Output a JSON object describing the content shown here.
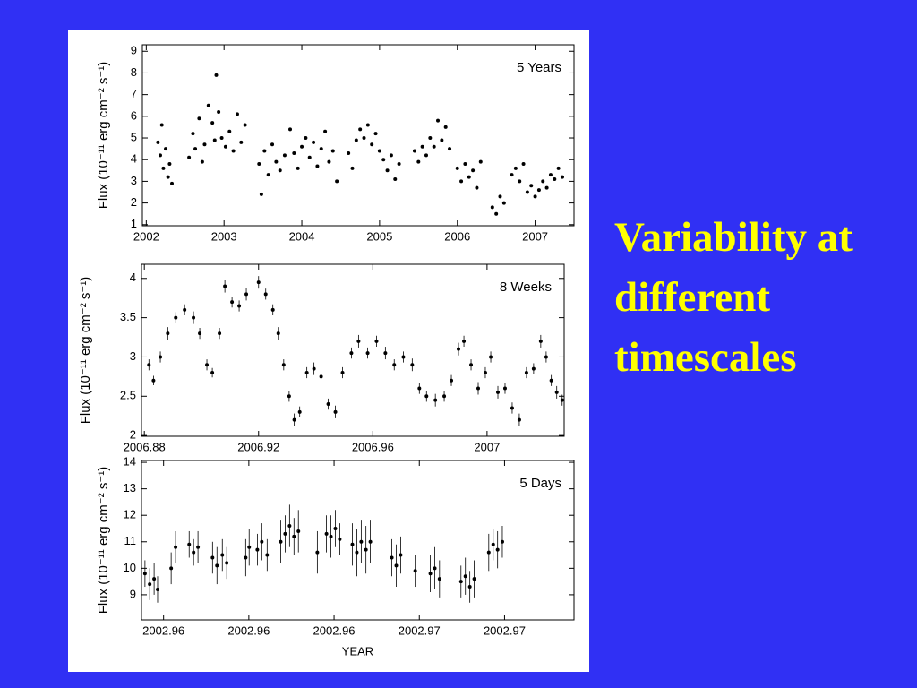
{
  "slide": {
    "title": "Variability at different timescales"
  },
  "chart_data": [
    {
      "type": "scatter",
      "annotation": "5 Years",
      "ylabel": "Flux (10⁻¹¹ erg cm⁻² s⁻¹)",
      "color": "#000000",
      "xlim": [
        2001.95,
        2007.5
      ],
      "ylim": [
        0.95,
        9.3
      ],
      "xticks": [
        2002,
        2003,
        2004,
        2005,
        2006,
        2007
      ],
      "yticks": [
        1,
        2,
        3,
        4,
        5,
        6,
        7,
        8,
        9
      ],
      "x": [
        2002.15,
        2002.18,
        2002.2,
        2002.22,
        2002.25,
        2002.28,
        2002.3,
        2002.33,
        2002.55,
        2002.6,
        2002.63,
        2002.68,
        2002.72,
        2002.75,
        2002.8,
        2002.85,
        2002.88,
        2002.9,
        2002.93,
        2002.97,
        2003.02,
        2003.07,
        2003.12,
        2003.17,
        2003.22,
        2003.27,
        2003.45,
        2003.48,
        2003.52,
        2003.57,
        2003.62,
        2003.67,
        2003.72,
        2003.78,
        2003.85,
        2003.9,
        2003.95,
        2004.0,
        2004.05,
        2004.1,
        2004.15,
        2004.2,
        2004.25,
        2004.3,
        2004.35,
        2004.4,
        2004.45,
        2004.6,
        2004.65,
        2004.7,
        2004.75,
        2004.8,
        2004.85,
        2004.9,
        2004.95,
        2005.0,
        2005.05,
        2005.1,
        2005.15,
        2005.2,
        2005.25,
        2005.45,
        2005.5,
        2005.55,
        2005.6,
        2005.65,
        2005.7,
        2005.75,
        2005.8,
        2005.85,
        2005.9,
        2006.0,
        2006.05,
        2006.1,
        2006.15,
        2006.2,
        2006.25,
        2006.3,
        2006.45,
        2006.5,
        2006.55,
        2006.6,
        2006.7,
        2006.75,
        2006.8,
        2006.85,
        2006.9,
        2006.95,
        2007.0,
        2007.05,
        2007.1,
        2007.15,
        2007.2,
        2007.25,
        2007.3,
        2007.35
      ],
      "values": [
        4.8,
        4.2,
        5.6,
        3.6,
        4.5,
        3.2,
        3.8,
        2.9,
        4.1,
        5.2,
        4.5,
        5.9,
        3.9,
        4.7,
        6.5,
        5.7,
        4.9,
        7.9,
        6.2,
        5.0,
        4.6,
        5.3,
        4.4,
        6.1,
        4.8,
        5.6,
        3.8,
        2.4,
        4.4,
        3.3,
        4.7,
        3.9,
        3.5,
        4.2,
        5.4,
        4.3,
        3.6,
        4.6,
        5.0,
        4.1,
        4.8,
        3.7,
        4.5,
        5.3,
        3.9,
        4.4,
        3.0,
        4.3,
        3.6,
        4.9,
        5.4,
        5.0,
        5.6,
        4.7,
        5.2,
        4.4,
        4.0,
        3.5,
        4.2,
        3.1,
        3.8,
        4.4,
        3.9,
        4.6,
        4.2,
        5.0,
        4.6,
        5.8,
        4.9,
        5.5,
        4.5,
        3.6,
        3.0,
        3.8,
        3.2,
        3.5,
        2.7,
        3.9,
        1.8,
        1.5,
        2.3,
        2.0,
        3.3,
        3.6,
        3.0,
        3.8,
        2.5,
        2.8,
        2.3,
        2.6,
        3.0,
        2.7,
        3.3,
        3.1,
        3.6,
        3.2
      ]
    },
    {
      "type": "scatter",
      "annotation": "8 Weeks",
      "ylabel": "Flux (10⁻¹¹ erg cm⁻² s⁻¹)",
      "color": "#000000",
      "xlim": [
        2006.879,
        2007.027
      ],
      "ylim": [
        1.99,
        4.18
      ],
      "xticks": [
        2006.88,
        2006.92,
        2006.96,
        2007
      ],
      "yticks": [
        2,
        2.5,
        3,
        3.5,
        4
      ],
      "x": [
        2006.8816,
        2006.8832,
        2006.8856,
        2006.8882,
        2006.891,
        2006.8941,
        2006.8972,
        2006.8994,
        2006.9019,
        2006.9038,
        2006.9063,
        2006.9082,
        2006.9107,
        2006.9132,
        2006.9157,
        2006.92,
        2006.9225,
        2006.925,
        2006.9269,
        2006.9288,
        2006.9307,
        2006.9325,
        2006.9344,
        2006.9369,
        2006.9394,
        2006.9419,
        2006.9444,
        2006.9469,
        2006.9494,
        2006.9525,
        2006.955,
        2006.9582,
        2006.9613,
        2006.9644,
        2006.9675,
        2006.9707,
        2006.9738,
        2006.9763,
        2006.9788,
        2006.9819,
        2006.985,
        2006.9875,
        2006.99,
        2006.9919,
        2006.9944,
        2006.9969,
        2006.9994,
        2007.0013,
        2007.0038,
        2007.0063,
        2007.0088,
        2007.0113,
        2007.0138,
        2007.0163,
        2007.0188,
        2007.0207,
        2007.0225,
        2007.0244,
        2007.0263
      ],
      "values": [
        2.9,
        2.7,
        3.0,
        3.3,
        3.5,
        3.6,
        3.5,
        3.3,
        2.9,
        2.8,
        3.3,
        3.9,
        3.7,
        3.65,
        3.8,
        3.95,
        3.8,
        3.6,
        3.3,
        2.9,
        2.5,
        2.2,
        2.3,
        2.8,
        2.85,
        2.75,
        2.4,
        2.3,
        2.8,
        3.05,
        3.2,
        3.05,
        3.2,
        3.05,
        2.9,
        3.0,
        2.9,
        2.6,
        2.5,
        2.45,
        2.5,
        2.7,
        3.1,
        3.2,
        2.9,
        2.6,
        2.8,
        3.0,
        2.55,
        2.6,
        2.35,
        2.2,
        2.8,
        2.85,
        3.2,
        3.0,
        2.7,
        2.55,
        2.45
      ],
      "errors": [
        0.07,
        0.06,
        0.07,
        0.08,
        0.07,
        0.07,
        0.08,
        0.07,
        0.07,
        0.06,
        0.07,
        0.08,
        0.07,
        0.07,
        0.08,
        0.08,
        0.07,
        0.07,
        0.08,
        0.07,
        0.07,
        0.08,
        0.07,
        0.07,
        0.08,
        0.07,
        0.07,
        0.08,
        0.07,
        0.07,
        0.08,
        0.07,
        0.07,
        0.08,
        0.07,
        0.07,
        0.08,
        0.07,
        0.07,
        0.08,
        0.07,
        0.07,
        0.08,
        0.07,
        0.07,
        0.08,
        0.07,
        0.07,
        0.08,
        0.07,
        0.07,
        0.08,
        0.07,
        0.07,
        0.08,
        0.07,
        0.07,
        0.08,
        0.07
      ]
    },
    {
      "type": "scatter",
      "annotation": "5 Days",
      "ylabel": "Flux (10⁻¹¹ erg cm⁻² s⁻¹)",
      "xlabel": "YEAR",
      "color": "#000000",
      "xlim": [
        2002.9563,
        2002.97
      ],
      "ylim": [
        8.05,
        14.07
      ],
      "xticks": [
        {
          "value": 2002.957,
          "label": "2002.96"
        },
        {
          "value": 2002.9597,
          "label": "2002.96"
        },
        {
          "value": 2002.9624,
          "label": "2002.96"
        },
        {
          "value": 2002.9651,
          "label": "2002.97"
        },
        {
          "value": 2002.9678,
          "label": "2002.97"
        }
      ],
      "yticks": [
        9,
        10,
        11,
        12,
        13,
        14
      ],
      "x": [
        2002.95641,
        2002.95656,
        2002.9567,
        2002.95681,
        2002.95724,
        2002.95738,
        2002.95781,
        2002.95795,
        2002.95809,
        2002.95855,
        2002.95869,
        2002.95886,
        2002.959,
        2002.9596,
        2002.95971,
        2002.95997,
        2002.96011,
        2002.96028,
        2002.96071,
        2002.96085,
        2002.96099,
        2002.96113,
        2002.96127,
        2002.96187,
        2002.96216,
        2002.9623,
        2002.96244,
        2002.96258,
        2002.96298,
        2002.96312,
        2002.96326,
        2002.96341,
        2002.96355,
        2002.96423,
        2002.96437,
        2002.96451,
        2002.96497,
        2002.96545,
        2002.96559,
        2002.96574,
        2002.96642,
        2002.96656,
        2002.9667,
        2002.96684,
        2002.9673,
        2002.96744,
        2002.96758,
        2002.96773
      ],
      "values": [
        9.8,
        9.4,
        9.6,
        9.2,
        10.0,
        10.8,
        10.9,
        10.6,
        10.8,
        10.4,
        10.1,
        10.5,
        10.2,
        10.4,
        10.8,
        10.7,
        11.0,
        10.5,
        11.0,
        11.3,
        11.6,
        11.2,
        11.4,
        10.6,
        11.3,
        11.2,
        11.5,
        11.1,
        10.9,
        10.6,
        11.0,
        10.7,
        11.0,
        10.4,
        10.1,
        10.5,
        9.9,
        9.8,
        10.0,
        9.6,
        9.5,
        9.7,
        9.3,
        9.6,
        10.6,
        10.9,
        10.7,
        11.0
      ],
      "errors": [
        0.5,
        0.6,
        0.6,
        0.5,
        0.6,
        0.6,
        0.5,
        0.5,
        0.6,
        0.6,
        0.7,
        0.6,
        0.6,
        0.7,
        0.7,
        0.6,
        0.7,
        0.6,
        0.8,
        0.7,
        0.8,
        0.7,
        0.8,
        0.8,
        0.7,
        0.8,
        0.7,
        0.6,
        0.8,
        0.9,
        0.8,
        0.9,
        0.8,
        0.7,
        0.8,
        0.7,
        0.6,
        0.7,
        0.8,
        0.7,
        0.6,
        0.7,
        0.6,
        0.7,
        0.7,
        0.6,
        0.7,
        0.6
      ]
    }
  ]
}
